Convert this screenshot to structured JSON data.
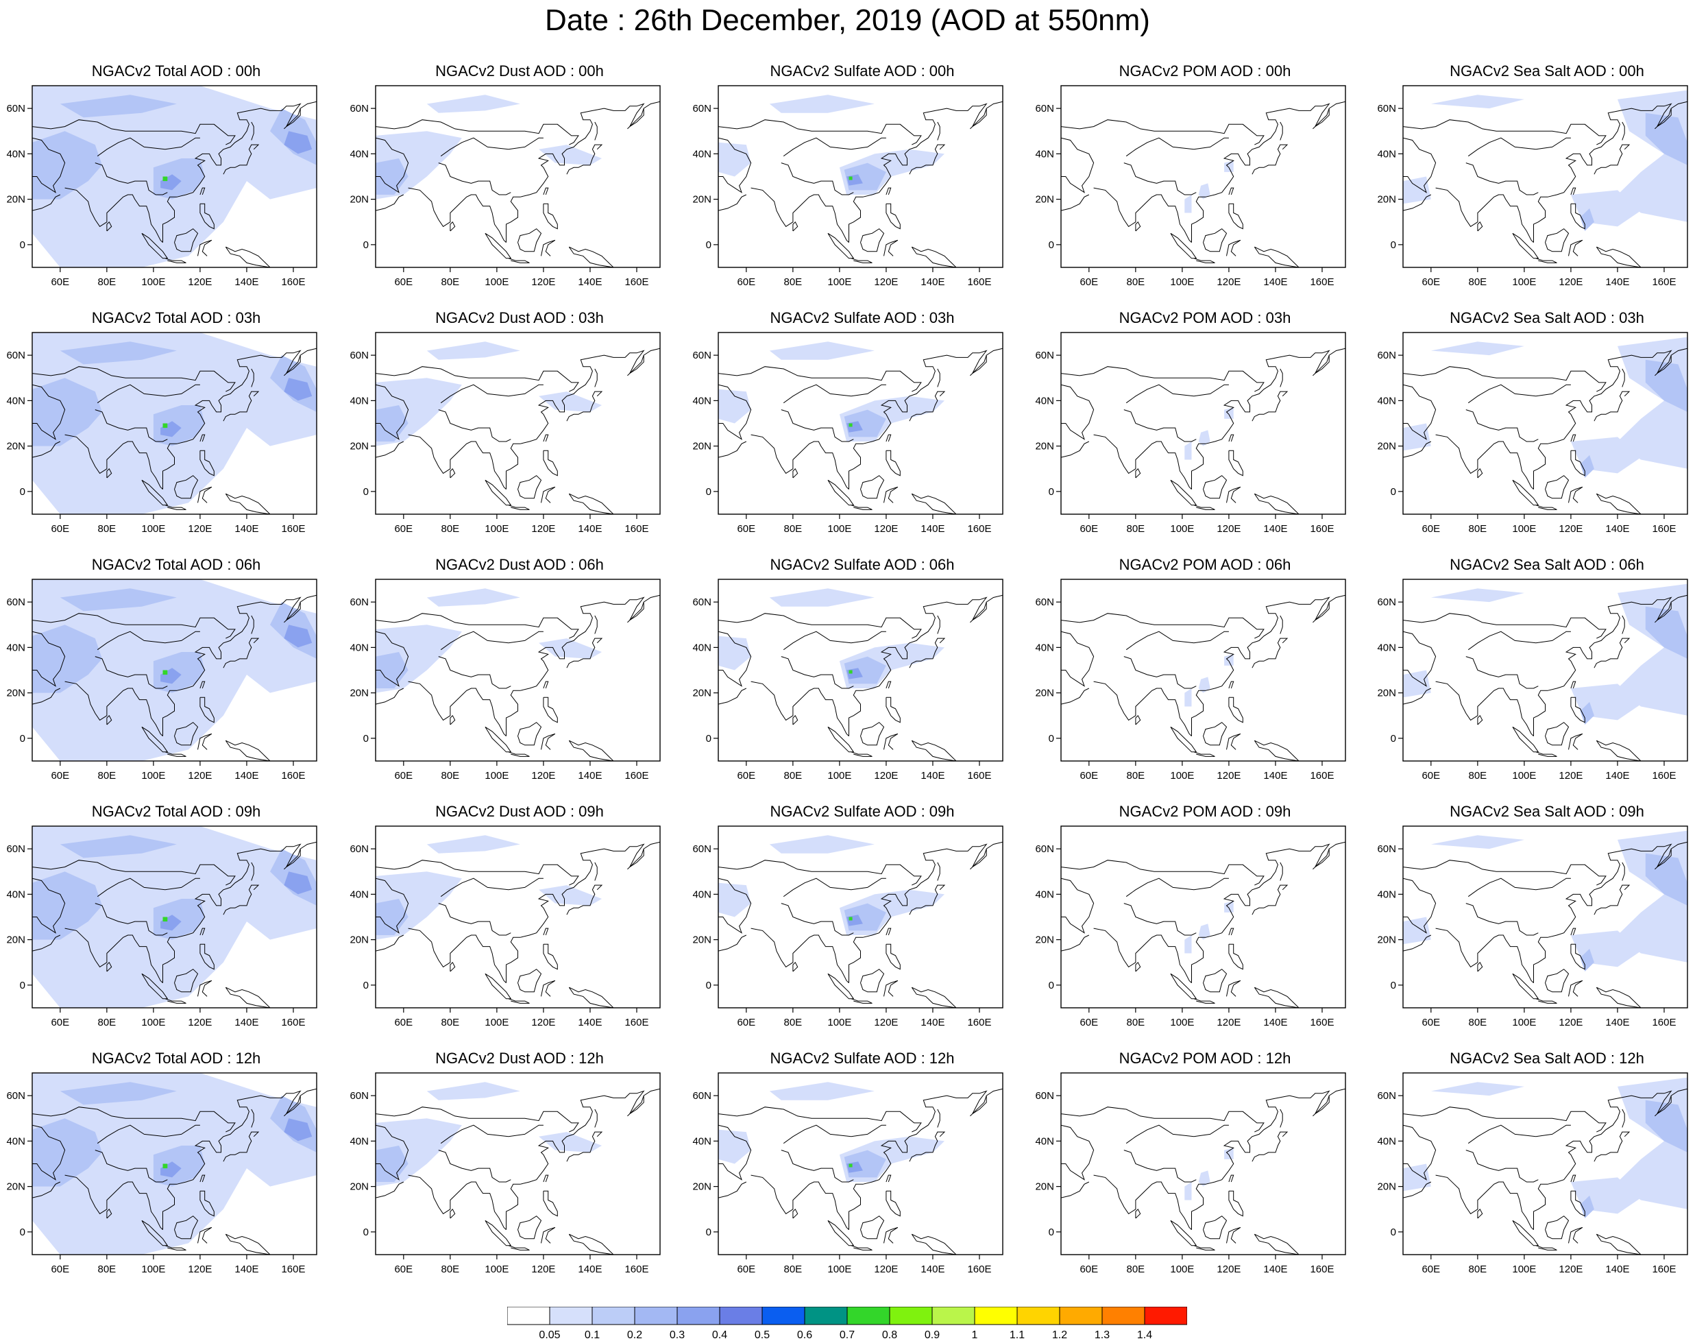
{
  "title": "Date : 26th December, 2019 (AOD at 550nm)",
  "axes": {
    "lon_ticks": [
      "60E",
      "80E",
      "100E",
      "120E",
      "140E",
      "160E"
    ],
    "lat_ticks": [
      "60N",
      "40N",
      "20N",
      "0"
    ],
    "lon_range": [
      48,
      170
    ],
    "lat_range": [
      -10,
      70
    ]
  },
  "panels": [
    [
      "NGACv2 Total AOD : 00h",
      "NGACv2 Dust AOD : 00h",
      "NGACv2 Sulfate AOD : 00h",
      "NGACv2 POM AOD : 00h",
      "NGACv2 Sea Salt AOD : 00h"
    ],
    [
      "NGACv2 Total AOD : 03h",
      "NGACv2 Dust AOD : 03h",
      "NGACv2 Sulfate AOD : 03h",
      "NGACv2 POM AOD : 03h",
      "NGACv2 Sea Salt AOD : 03h"
    ],
    [
      "NGACv2 Total AOD : 06h",
      "NGACv2 Dust AOD : 06h",
      "NGACv2 Sulfate AOD : 06h",
      "NGACv2 POM AOD : 06h",
      "NGACv2 Sea Salt AOD : 06h"
    ],
    [
      "NGACv2 Total AOD : 09h",
      "NGACv2 Dust AOD : 09h",
      "NGACv2 Sulfate AOD : 09h",
      "NGACv2 POM AOD : 09h",
      "NGACv2 Sea Salt  AOD : 09h"
    ],
    [
      "NGACv2 Total AOD  : 12h",
      "NGACv2 Dust AOD : 12h",
      "NGACv2 Sulfate AOD : 12h",
      "NGACv2 POM  AOD : 12h",
      "NGACv2 Sea Salt  AOD : 12h"
    ]
  ],
  "colorbar": {
    "labels": [
      "0.05",
      "0.1",
      "0.2",
      "0.3",
      "0.4",
      "0.5",
      "0.6",
      "0.7",
      "0.8",
      "0.9",
      "1",
      "1.1",
      "1.2",
      "1.3",
      "1.4"
    ],
    "colors": [
      "#ffffff",
      "#d6e0fb",
      "#bccdf7",
      "#a3b8f3",
      "#8aa2ef",
      "#6a7ee6",
      "#0a5ef0",
      "#009384",
      "#33d62a",
      "#7ff20e",
      "#baf54a",
      "#ffff00",
      "#ffd400",
      "#ffaa00",
      "#ff8000",
      "#ff1a00"
    ]
  },
  "colors": {
    "aod_light": "#d4defb",
    "aod_mid": "#b3c5f6",
    "aod_high": "#8aa2ef",
    "hotspot": "#33d62a"
  }
}
